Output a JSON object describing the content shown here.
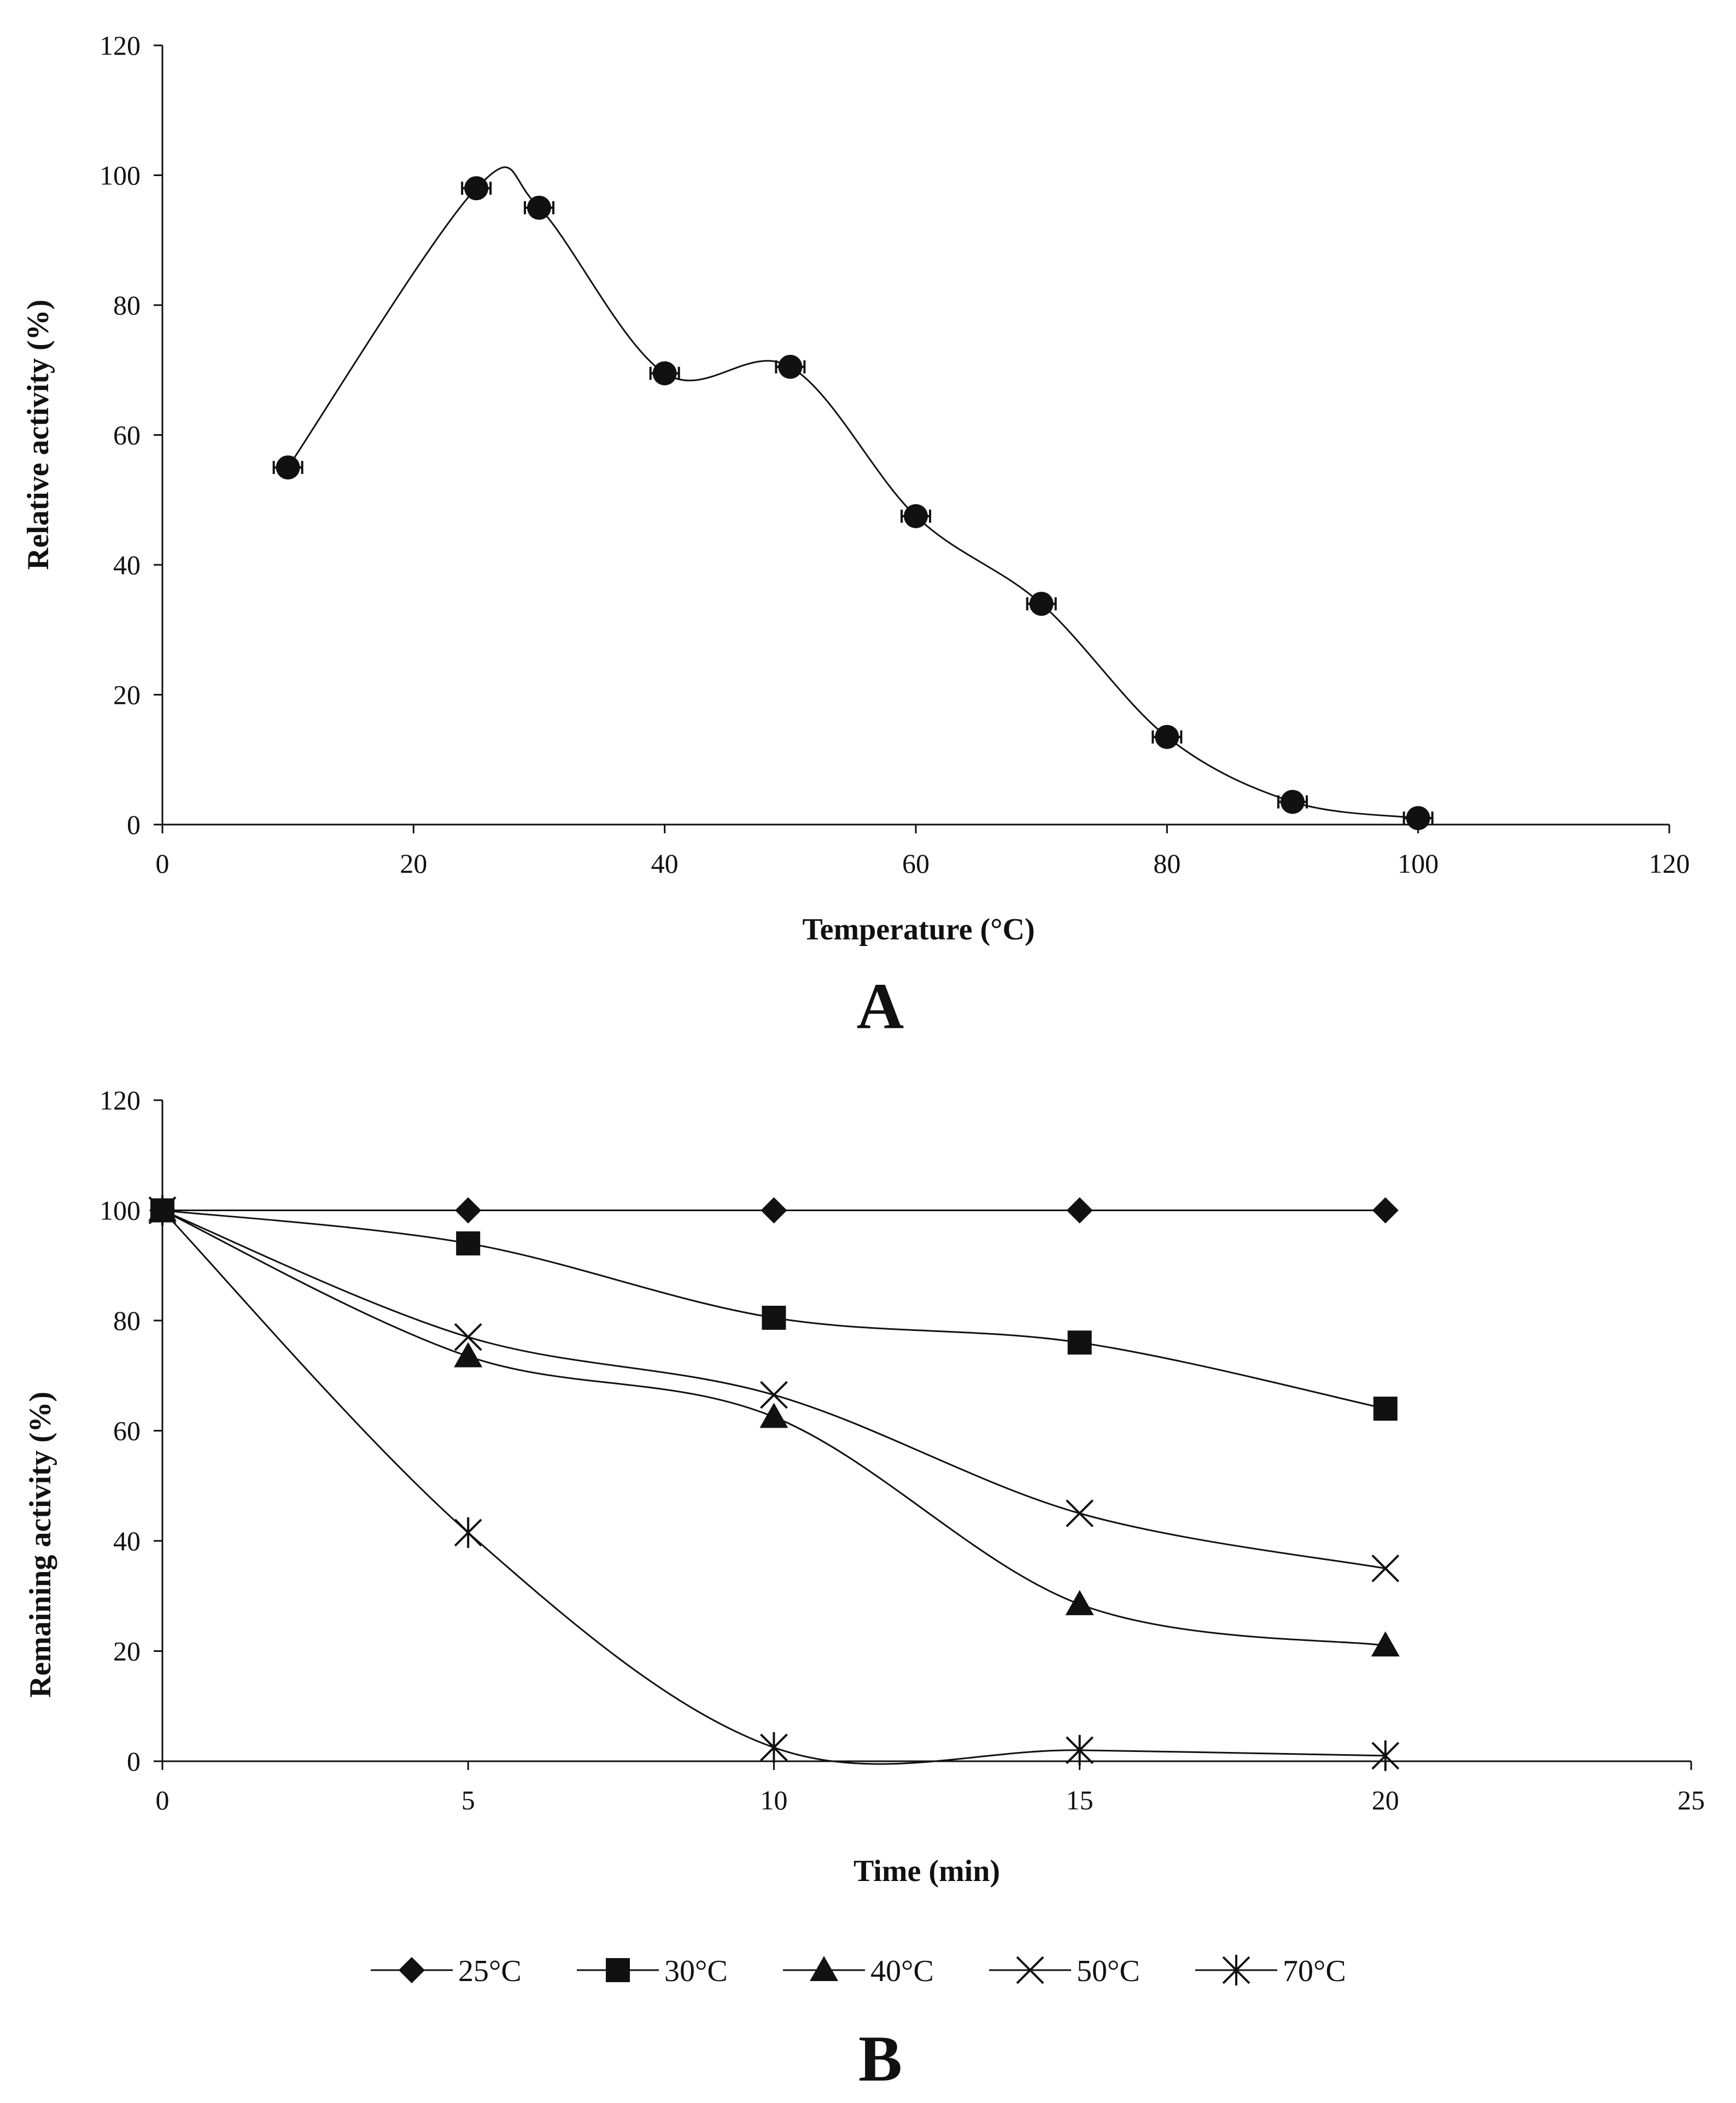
{
  "chart_data": [
    {
      "panel": "A",
      "type": "line",
      "xlabel": "Temperature (°C)",
      "ylabel": "Relative activity (%)",
      "xlim": [
        0,
        120
      ],
      "ylim": [
        0,
        120
      ],
      "xticks": [
        "0",
        "20",
        "40",
        "60",
        "80",
        "100",
        "120"
      ],
      "yticks": [
        "0",
        "20",
        "40",
        "60",
        "80",
        "100",
        "120"
      ],
      "smooth": true,
      "error_bars": true,
      "series": [
        {
          "marker": "circle",
          "x": [
            10,
            25,
            30,
            40,
            50,
            60,
            70,
            80,
            90,
            100
          ],
          "y": [
            55,
            98,
            95,
            69.5,
            70.5,
            47.5,
            34,
            13.5,
            3.5,
            1
          ]
        }
      ]
    },
    {
      "panel": "B",
      "type": "line",
      "xlabel": "Time (min)",
      "ylabel": "Remaining activity (%)",
      "xlim": [
        0,
        25
      ],
      "ylim": [
        0,
        120
      ],
      "xticks": [
        "0",
        "5",
        "10",
        "15",
        "20",
        "25"
      ],
      "yticks": [
        "0",
        "20",
        "40",
        "60",
        "80",
        "100",
        "120"
      ],
      "smooth": true,
      "legend_position": "bottom",
      "series": [
        {
          "name": "25°C",
          "marker": "diamond",
          "x": [
            0,
            5,
            10,
            15,
            20
          ],
          "y": [
            100,
            100,
            100,
            100,
            100
          ]
        },
        {
          "name": "30°C",
          "marker": "square",
          "x": [
            0,
            5,
            10,
            15,
            20
          ],
          "y": [
            100,
            94,
            80.5,
            76,
            64
          ]
        },
        {
          "name": "40°C",
          "marker": "triangle",
          "x": [
            0,
            5,
            10,
            15,
            20
          ],
          "y": [
            100,
            73.5,
            62.5,
            28.5,
            21
          ]
        },
        {
          "name": "50°C",
          "marker": "x",
          "x": [
            0,
            5,
            10,
            15,
            20
          ],
          "y": [
            100,
            77,
            66.5,
            45,
            35
          ]
        },
        {
          "name": "70°C",
          "marker": "asterisk",
          "x": [
            0,
            5,
            10,
            15,
            20
          ],
          "y": [
            100,
            41.5,
            2.5,
            2,
            1
          ]
        }
      ]
    }
  ]
}
